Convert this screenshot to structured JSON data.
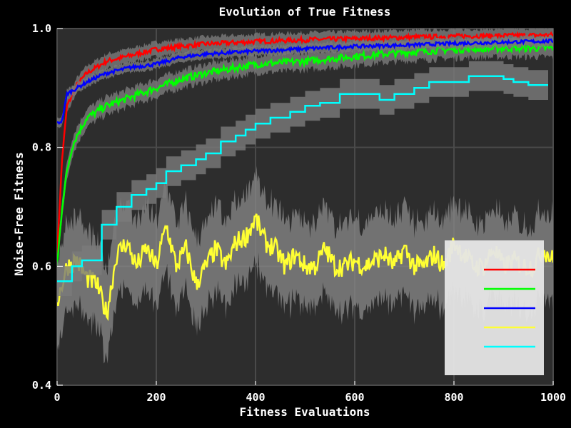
{
  "chart_data": {
    "type": "line",
    "title": "Evolution of True Fitness",
    "xlabel": "Fitness Evaluations",
    "ylabel": "Noise-Free Fitness",
    "xlim": [
      0,
      1000
    ],
    "ylim": [
      0.4,
      1.0
    ],
    "xticks": [
      "0",
      "200",
      "400",
      "600",
      "800",
      "1000"
    ],
    "yticks": [
      "0.4",
      "0.6",
      "0.8",
      "1.0"
    ],
    "grid": true,
    "legend": "bottom-right",
    "series": [
      {
        "color": "#ff0000",
        "x": [
          0,
          10,
          20,
          40,
          60,
          80,
          100,
          150,
          200,
          250,
          300,
          400,
          500,
          600,
          700,
          800,
          900,
          1000
        ],
        "y": [
          0.62,
          0.78,
          0.87,
          0.905,
          0.925,
          0.935,
          0.945,
          0.955,
          0.965,
          0.97,
          0.974,
          0.978,
          0.981,
          0.983,
          0.985,
          0.987,
          0.988,
          0.989
        ],
        "band": 0.012
      },
      {
        "color": "#00ff00",
        "x": [
          0,
          10,
          20,
          30,
          40,
          60,
          80,
          100,
          150,
          200,
          250,
          300,
          400,
          500,
          600,
          700,
          800,
          900,
          1000
        ],
        "y": [
          0.6,
          0.7,
          0.76,
          0.8,
          0.82,
          0.85,
          0.86,
          0.87,
          0.885,
          0.9,
          0.915,
          0.925,
          0.94,
          0.945,
          0.953,
          0.96,
          0.965,
          0.967,
          0.967
        ],
        "band": 0.015
      },
      {
        "color": "#0000ff",
        "x": [
          0,
          10,
          20,
          40,
          60,
          80,
          100,
          150,
          200,
          250,
          300,
          400,
          500,
          600,
          700,
          800,
          900,
          1000
        ],
        "y": [
          0.84,
          0.845,
          0.89,
          0.9,
          0.91,
          0.918,
          0.925,
          0.935,
          0.94,
          0.952,
          0.957,
          0.962,
          0.966,
          0.97,
          0.972,
          0.975,
          0.977,
          0.979
        ],
        "band": 0.008
      },
      {
        "color": "#ffff33",
        "x": [
          0,
          20,
          40,
          60,
          80,
          100,
          120,
          140,
          160,
          180,
          200,
          220,
          240,
          260,
          280,
          300,
          320,
          340,
          360,
          380,
          400,
          420,
          440,
          460,
          480,
          500,
          520,
          540,
          560,
          580,
          600,
          620,
          640,
          660,
          680,
          700,
          720,
          740,
          760,
          780,
          800,
          820,
          840,
          860,
          880,
          900,
          920,
          940,
          960,
          980,
          1000
        ],
        "y": [
          0.54,
          0.6,
          0.61,
          0.58,
          0.57,
          0.52,
          0.62,
          0.64,
          0.6,
          0.63,
          0.6,
          0.67,
          0.6,
          0.63,
          0.57,
          0.6,
          0.63,
          0.6,
          0.64,
          0.65,
          0.68,
          0.64,
          0.63,
          0.6,
          0.62,
          0.6,
          0.6,
          0.63,
          0.6,
          0.6,
          0.61,
          0.6,
          0.61,
          0.62,
          0.6,
          0.63,
          0.6,
          0.6,
          0.62,
          0.6,
          0.64,
          0.62,
          0.6,
          0.6,
          0.63,
          0.6,
          0.61,
          0.6,
          0.6,
          0.63,
          0.61
        ],
        "band": 0.06
      },
      {
        "color": "#00ffff",
        "x": [
          0,
          30,
          50,
          90,
          120,
          150,
          180,
          200,
          220,
          250,
          280,
          300,
          330,
          360,
          380,
          400,
          430,
          470,
          500,
          530,
          570,
          600,
          650,
          680,
          720,
          750,
          780,
          810,
          830,
          850,
          880,
          900,
          920,
          950,
          990
        ],
        "y": [
          0.575,
          0.6,
          0.61,
          0.67,
          0.7,
          0.72,
          0.73,
          0.74,
          0.76,
          0.77,
          0.78,
          0.79,
          0.81,
          0.82,
          0.83,
          0.84,
          0.85,
          0.86,
          0.87,
          0.875,
          0.89,
          0.89,
          0.88,
          0.89,
          0.9,
          0.91,
          0.91,
          0.91,
          0.92,
          0.92,
          0.92,
          0.915,
          0.91,
          0.905,
          0.905
        ],
        "band": 0.025
      }
    ]
  }
}
